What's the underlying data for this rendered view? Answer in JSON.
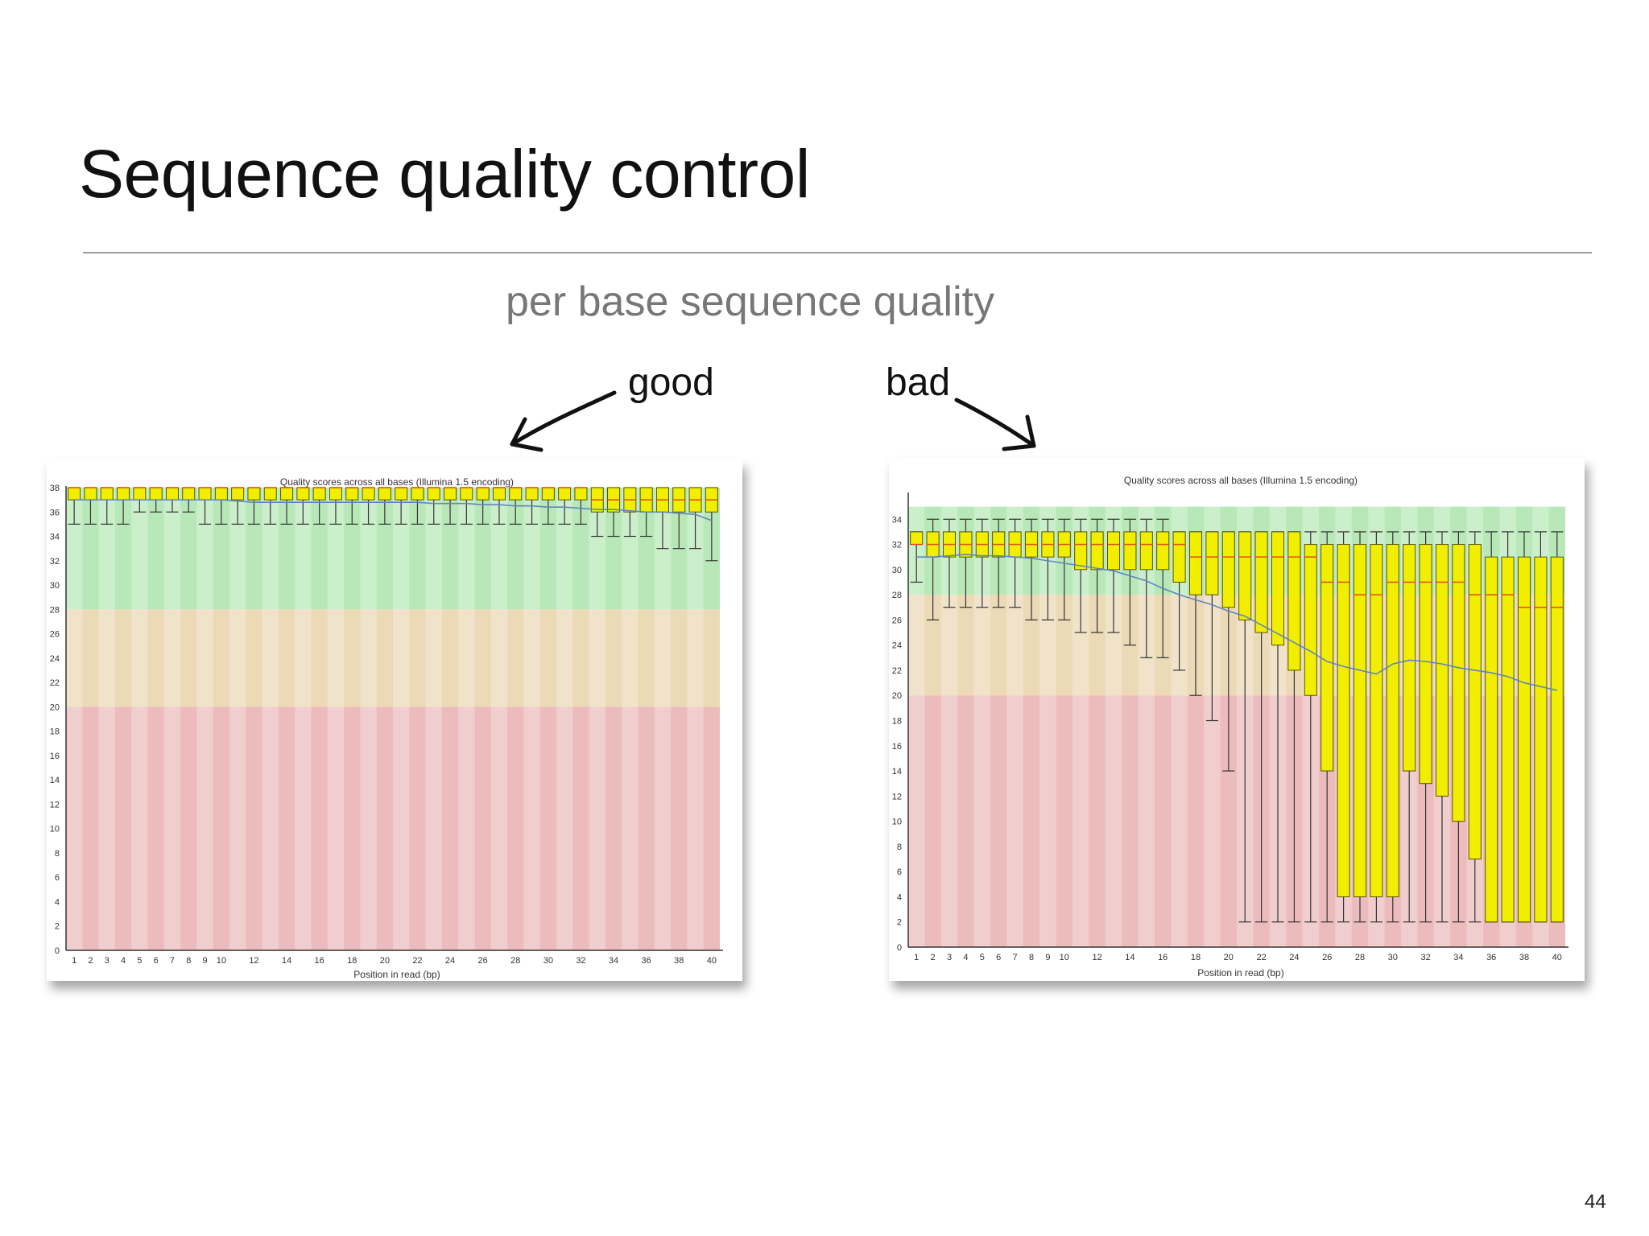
{
  "slide": {
    "title": "Sequence quality control",
    "subtitle": "per base sequence quality",
    "label_good": "good",
    "label_bad": "bad",
    "page_number": "44"
  },
  "colors": {
    "good_zone": "#b8e8b8",
    "warn_zone": "#ecd9b6",
    "bad_zone": "#ecbcbc",
    "box_fill": "#f2ee00",
    "box_stroke": "#555500",
    "median": "#e34a1a",
    "mean_line": "#5f86bd",
    "whisker": "#333333"
  },
  "chart_data": [
    {
      "type": "boxplot",
      "title": "Quality scores across all bases (Illumina 1.5 encoding)",
      "xlabel": "Position in read (bp)",
      "ylabel": "",
      "ylim": [
        0,
        38
      ],
      "yticks": [
        0,
        2,
        4,
        6,
        8,
        10,
        12,
        14,
        16,
        18,
        20,
        22,
        24,
        26,
        28,
        30,
        32,
        34,
        36,
        38
      ],
      "xticks": [
        "1",
        "2",
        "3",
        "4",
        "5",
        "6",
        "7",
        "8",
        "9",
        "10",
        "12",
        "14",
        "16",
        "18",
        "20",
        "22",
        "24",
        "26",
        "28",
        "30",
        "32",
        "34",
        "36",
        "38",
        "40"
      ],
      "zones": [
        {
          "from": 28,
          "to": 38,
          "quality": "good"
        },
        {
          "from": 20,
          "to": 28,
          "quality": "reasonable"
        },
        {
          "from": 0,
          "to": 20,
          "quality": "poor"
        }
      ],
      "positions": [
        1,
        2,
        3,
        4,
        5,
        6,
        7,
        8,
        9,
        10,
        11,
        12,
        13,
        14,
        15,
        16,
        17,
        18,
        19,
        20,
        21,
        22,
        23,
        24,
        25,
        26,
        27,
        28,
        29,
        30,
        31,
        32,
        33,
        34,
        35,
        36,
        37,
        38,
        39,
        40
      ],
      "boxes": [
        [
          35,
          37,
          38,
          38,
          38
        ],
        [
          35,
          37,
          38,
          38,
          38
        ],
        [
          35,
          37,
          38,
          38,
          38
        ],
        [
          35,
          37,
          38,
          38,
          38
        ],
        [
          36,
          37,
          38,
          38,
          38
        ],
        [
          36,
          37,
          38,
          38,
          38
        ],
        [
          36,
          37,
          38,
          38,
          38
        ],
        [
          36,
          37,
          38,
          38,
          38
        ],
        [
          35,
          37,
          38,
          38,
          38
        ],
        [
          35,
          37,
          38,
          38,
          38
        ],
        [
          35,
          37,
          38,
          38,
          38
        ],
        [
          35,
          37,
          38,
          38,
          38
        ],
        [
          35,
          37,
          38,
          38,
          38
        ],
        [
          35,
          37,
          38,
          38,
          38
        ],
        [
          35,
          37,
          38,
          38,
          38
        ],
        [
          35,
          37,
          38,
          38,
          38
        ],
        [
          35,
          37,
          38,
          38,
          38
        ],
        [
          35,
          37,
          38,
          38,
          38
        ],
        [
          35,
          37,
          38,
          38,
          38
        ],
        [
          35,
          37,
          38,
          38,
          38
        ],
        [
          35,
          37,
          38,
          38,
          38
        ],
        [
          35,
          37,
          38,
          38,
          38
        ],
        [
          35,
          37,
          38,
          38,
          38
        ],
        [
          35,
          37,
          38,
          38,
          38
        ],
        [
          35,
          37,
          38,
          38,
          38
        ],
        [
          35,
          37,
          38,
          38,
          38
        ],
        [
          35,
          37,
          38,
          38,
          38
        ],
        [
          35,
          37,
          38,
          38,
          38
        ],
        [
          35,
          37,
          38,
          38,
          38
        ],
        [
          35,
          37,
          38,
          38,
          38
        ],
        [
          35,
          37,
          38,
          38,
          38
        ],
        [
          35,
          37,
          38,
          38,
          38
        ],
        [
          34,
          36,
          37,
          38,
          38
        ],
        [
          34,
          36,
          37,
          38,
          38
        ],
        [
          34,
          36,
          37,
          38,
          38
        ],
        [
          34,
          36,
          37,
          38,
          38
        ],
        [
          33,
          36,
          37,
          38,
          38
        ],
        [
          33,
          36,
          37,
          38,
          38
        ],
        [
          33,
          36,
          37,
          38,
          38
        ],
        [
          32,
          36,
          37,
          38,
          38
        ]
      ],
      "mean": [
        37,
        37,
        37,
        37,
        37,
        37,
        37,
        37,
        37,
        37,
        36.9,
        36.8,
        36.8,
        36.8,
        36.8,
        36.8,
        36.8,
        36.8,
        36.8,
        36.8,
        36.8,
        36.8,
        36.7,
        36.7,
        36.7,
        36.6,
        36.6,
        36.5,
        36.5,
        36.4,
        36.4,
        36.3,
        36.2,
        36.2,
        36.1,
        36.0,
        36.0,
        35.9,
        35.8,
        35.3
      ]
    },
    {
      "type": "boxplot",
      "title": "Quality scores across all bases (Illumina 1.5 encoding)",
      "xlabel": "Position in read (bp)",
      "ylabel": "",
      "ylim": [
        0,
        36
      ],
      "yticks": [
        0,
        2,
        4,
        6,
        8,
        10,
        12,
        14,
        16,
        18,
        20,
        22,
        24,
        26,
        28,
        30,
        32,
        34
      ],
      "xticks": [
        "1",
        "2",
        "3",
        "4",
        "5",
        "6",
        "7",
        "8",
        "9",
        "10",
        "12",
        "14",
        "16",
        "18",
        "20",
        "22",
        "24",
        "26",
        "28",
        "30",
        "32",
        "34",
        "36",
        "38",
        "40"
      ],
      "zones": [
        {
          "from": 28,
          "to": 35,
          "quality": "good"
        },
        {
          "from": 20,
          "to": 28,
          "quality": "reasonable"
        },
        {
          "from": 0,
          "to": 20,
          "quality": "poor"
        }
      ],
      "positions": [
        1,
        2,
        3,
        4,
        5,
        6,
        7,
        8,
        9,
        10,
        11,
        12,
        13,
        14,
        15,
        16,
        17,
        18,
        19,
        20,
        21,
        22,
        23,
        24,
        25,
        26,
        27,
        28,
        29,
        30,
        31,
        32,
        33,
        34,
        35,
        36,
        37,
        38,
        39,
        40
      ],
      "boxes": [
        [
          29,
          32,
          32,
          33,
          33
        ],
        [
          26,
          31,
          32,
          33,
          34
        ],
        [
          27,
          31,
          32,
          33,
          34
        ],
        [
          27,
          31,
          32,
          33,
          34
        ],
        [
          27,
          31,
          32,
          33,
          34
        ],
        [
          27,
          31,
          32,
          33,
          34
        ],
        [
          27,
          31,
          32,
          33,
          34
        ],
        [
          26,
          31,
          32,
          33,
          34
        ],
        [
          26,
          31,
          32,
          33,
          34
        ],
        [
          26,
          31,
          32,
          33,
          34
        ],
        [
          25,
          30,
          32,
          33,
          34
        ],
        [
          25,
          30,
          32,
          33,
          34
        ],
        [
          25,
          30,
          32,
          33,
          34
        ],
        [
          24,
          30,
          32,
          33,
          34
        ],
        [
          23,
          30,
          32,
          33,
          34
        ],
        [
          23,
          30,
          32,
          33,
          34
        ],
        [
          22,
          29,
          32,
          33,
          33
        ],
        [
          20,
          28,
          31,
          33,
          33
        ],
        [
          18,
          28,
          31,
          33,
          33
        ],
        [
          14,
          27,
          31,
          33,
          33
        ],
        [
          2,
          26,
          31,
          33,
          33
        ],
        [
          2,
          25,
          31,
          33,
          33
        ],
        [
          2,
          24,
          31,
          33,
          33
        ],
        [
          2,
          22,
          31,
          33,
          33
        ],
        [
          2,
          20,
          31,
          32,
          33
        ],
        [
          2,
          14,
          29,
          32,
          33
        ],
        [
          2,
          4,
          29,
          32,
          33
        ],
        [
          2,
          4,
          28,
          32,
          33
        ],
        [
          2,
          4,
          28,
          32,
          33
        ],
        [
          2,
          4,
          29,
          32,
          33
        ],
        [
          2,
          14,
          29,
          32,
          33
        ],
        [
          2,
          13,
          29,
          32,
          33
        ],
        [
          2,
          12,
          29,
          32,
          33
        ],
        [
          2,
          10,
          29,
          32,
          33
        ],
        [
          2,
          7,
          28,
          32,
          33
        ],
        [
          2,
          2,
          28,
          31,
          33
        ],
        [
          2,
          2,
          28,
          31,
          33
        ],
        [
          2,
          2,
          27,
          31,
          33
        ],
        [
          2,
          2,
          27,
          31,
          33
        ],
        [
          2,
          2,
          27,
          31,
          33
        ]
      ],
      "mean": [
        31,
        31,
        31.1,
        31.2,
        31.1,
        31.1,
        31,
        30.9,
        30.7,
        30.5,
        30.3,
        30.1,
        29.9,
        29.5,
        29.1,
        28.5,
        28.0,
        27.6,
        27.2,
        26.7,
        26.3,
        25.6,
        24.9,
        24.2,
        23.5,
        22.7,
        22.3,
        22.0,
        21.7,
        22.5,
        22.8,
        22.7,
        22.5,
        22.2,
        22.0,
        21.8,
        21.5,
        21.0,
        20.7,
        20.4
      ]
    }
  ]
}
